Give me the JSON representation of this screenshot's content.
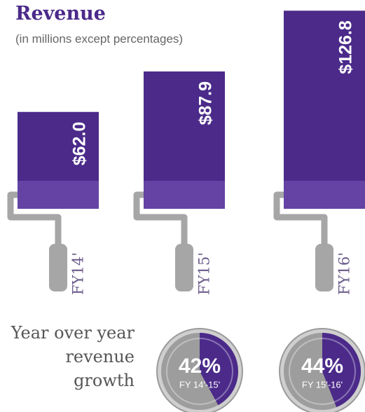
{
  "chart_data": [
    {
      "type": "bar",
      "title": "Revenue",
      "subtitle": "(in millions except percentages)",
      "categories": [
        "FY14'",
        "FY15'",
        "FY16'"
      ],
      "values": [
        62.0,
        87.9,
        126.8
      ],
      "value_labels": [
        "$62.0",
        "$87.9",
        "$126.8"
      ],
      "color": "#4b2a8a"
    },
    {
      "type": "pie",
      "title": "Year over year revenue growth",
      "categories": [
        "FY 14'-15'",
        "FY 15'-16'"
      ],
      "values": [
        42,
        44
      ],
      "value_labels": [
        "42%",
        "44%"
      ],
      "color": "#4b2a8a"
    }
  ]
}
